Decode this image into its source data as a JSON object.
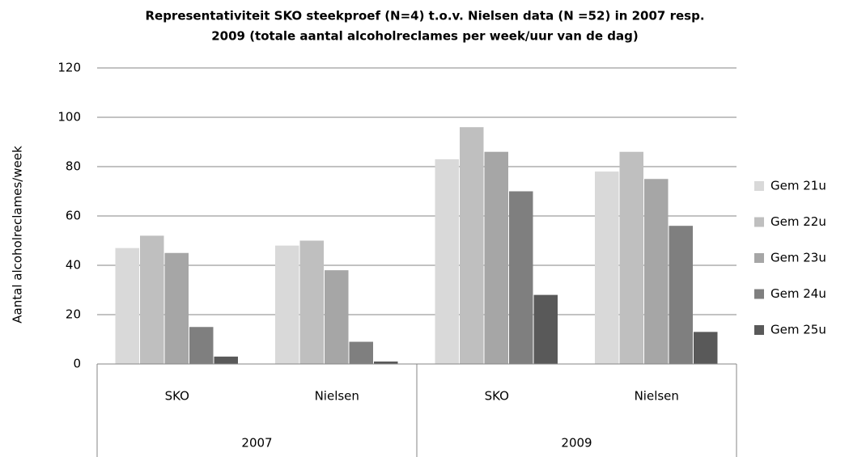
{
  "chart_data": {
    "type": "bar",
    "title": [
      "Representativiteit SKO steekproef (N=4) t.o.v. Nielsen data (N =52) in 2007 resp.",
      "2009 (totale aantal alcoholreclames per week/uur van de dag)"
    ],
    "ylabel": "Aantal alcoholreclames/week",
    "categories": [
      "SKO",
      "Nielsen",
      "SKO",
      "Nielsen"
    ],
    "groups": [
      "2007",
      "2009"
    ],
    "series": [
      {
        "name": "Gem 21u",
        "color": "#d9d9d9",
        "values": [
          47,
          48,
          83,
          78
        ]
      },
      {
        "name": "Gem 22u",
        "color": "#bfbfbf",
        "values": [
          52,
          50,
          96,
          86
        ]
      },
      {
        "name": "Gem 23u",
        "color": "#a6a6a6",
        "values": [
          45,
          38,
          86,
          75
        ]
      },
      {
        "name": "Gem 24u",
        "color": "#7f7f7f",
        "values": [
          15,
          9,
          70,
          56
        ]
      },
      {
        "name": "Gem 25u",
        "color": "#595959",
        "values": [
          3,
          1,
          28,
          13
        ]
      }
    ],
    "ylim": [
      0,
      120
    ],
    "yticks": [
      0,
      20,
      40,
      60,
      80,
      100,
      120
    ],
    "grid": true,
    "legend": "right"
  }
}
